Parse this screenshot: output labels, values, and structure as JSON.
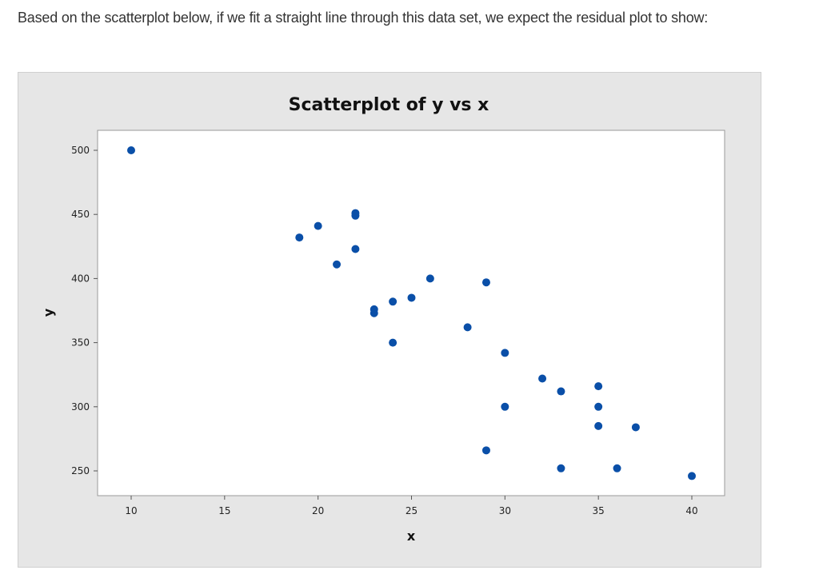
{
  "question": "Based on the scatterplot below, if we fit a straight line through this data set, we expect the residual plot to show:",
  "chart_data": {
    "type": "scatter",
    "title": "Scatterplot of y vs x",
    "xlabel": "x",
    "ylabel": "y",
    "xlim": [
      8.3,
      41.7
    ],
    "ylim": [
      229,
      515
    ],
    "xticks": [
      10,
      15,
      20,
      25,
      30,
      35,
      40
    ],
    "yticks": [
      250,
      300,
      350,
      400,
      450,
      500
    ],
    "grid": false,
    "marker_color": "#0a4fa8",
    "points": [
      [
        10,
        500
      ],
      [
        19,
        432
      ],
      [
        20,
        441
      ],
      [
        21,
        411
      ],
      [
        22,
        449
      ],
      [
        22,
        451
      ],
      [
        22,
        423
      ],
      [
        23,
        373
      ],
      [
        23,
        376
      ],
      [
        24,
        382
      ],
      [
        24,
        350
      ],
      [
        25,
        385
      ],
      [
        26,
        400
      ],
      [
        28,
        362
      ],
      [
        29,
        397
      ],
      [
        29,
        266
      ],
      [
        30,
        342
      ],
      [
        30,
        300
      ],
      [
        32,
        322
      ],
      [
        33,
        312
      ],
      [
        33,
        252
      ],
      [
        35,
        316
      ],
      [
        35,
        300
      ],
      [
        35,
        285
      ],
      [
        36,
        252
      ],
      [
        37,
        284
      ],
      [
        40,
        246
      ]
    ]
  }
}
